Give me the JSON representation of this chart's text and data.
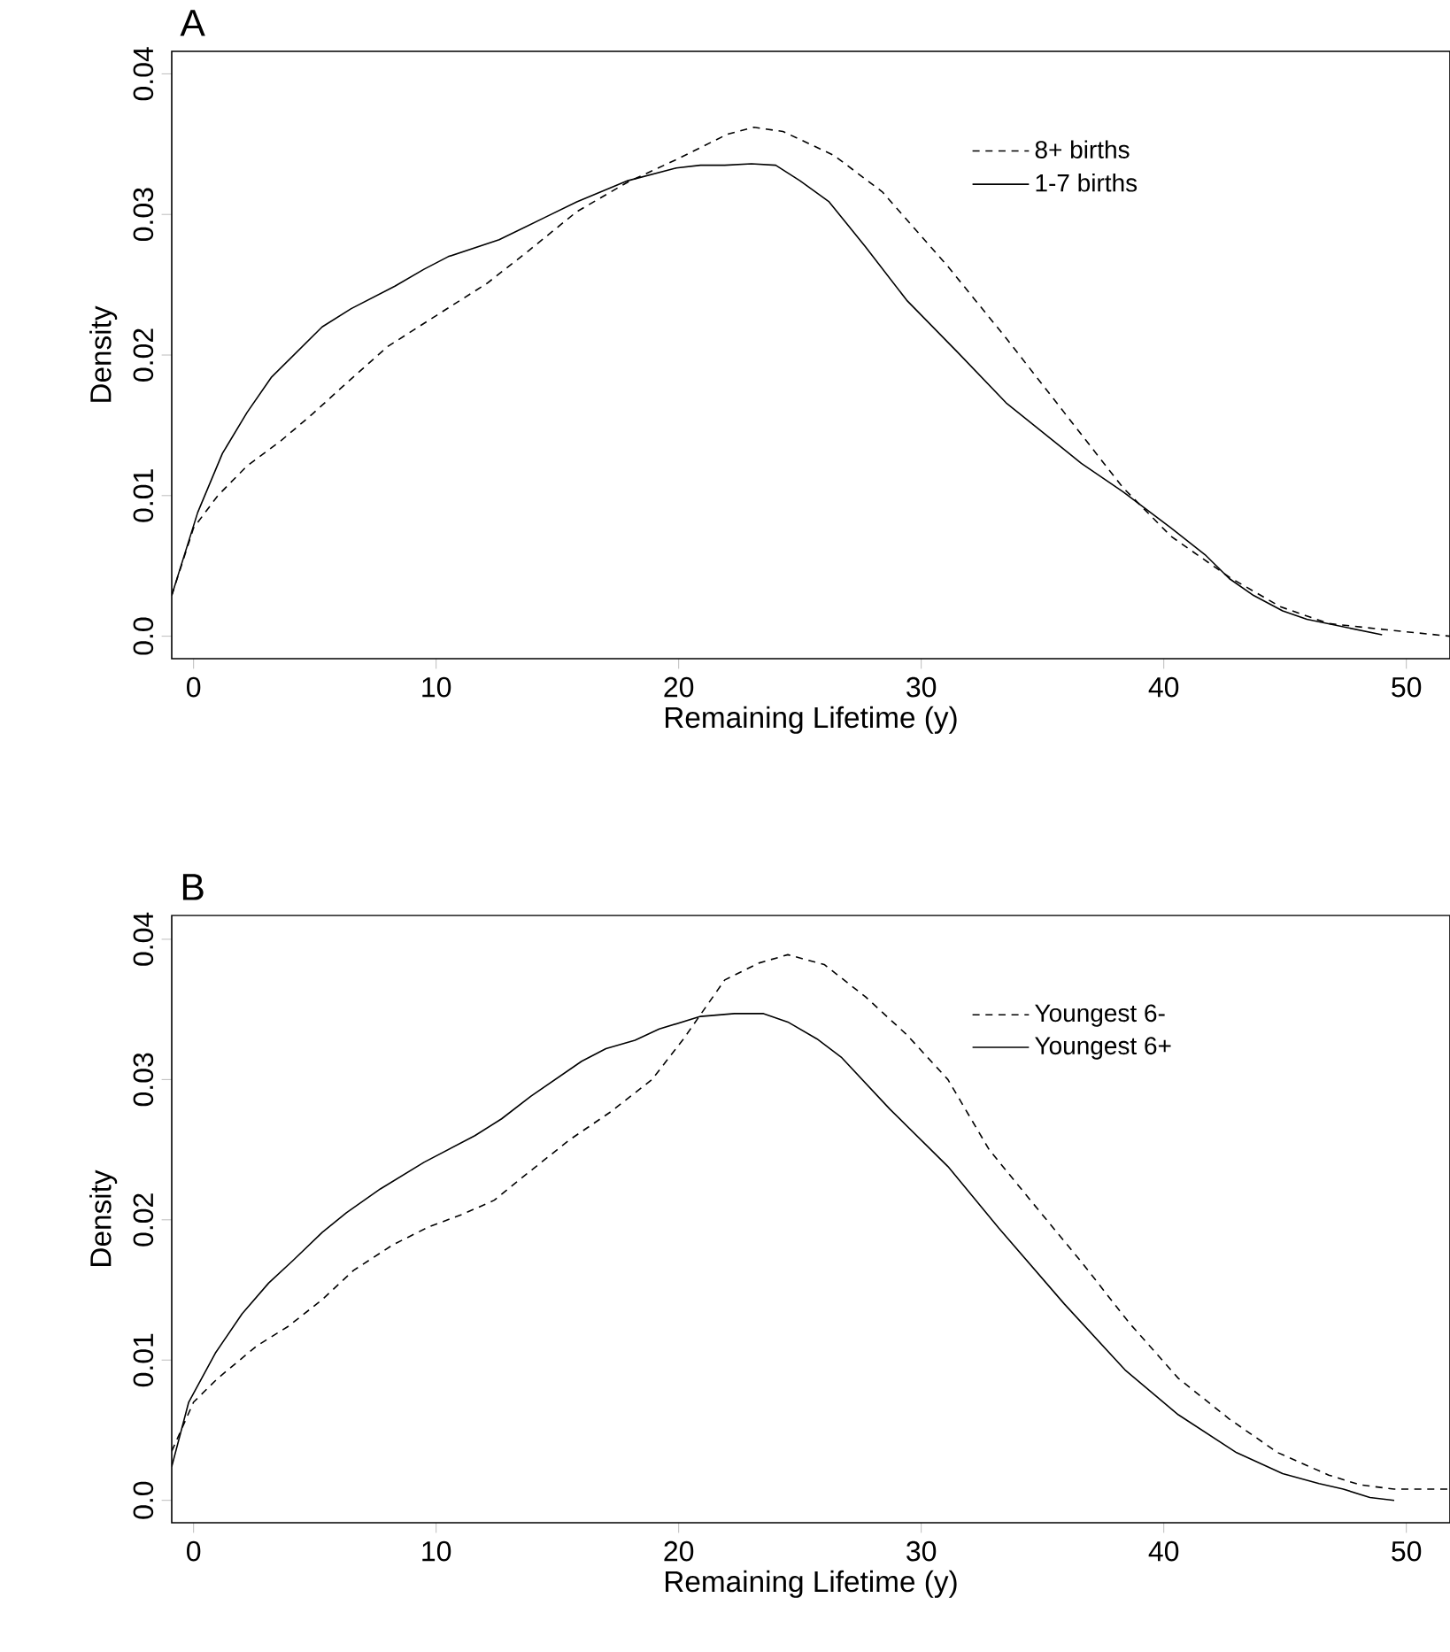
{
  "chart_data": [
    {
      "type": "line",
      "title": "A",
      "xlabel": "Remaining Lifetime (y)",
      "ylabel": "Density",
      "xlim": [
        -0.9,
        51.8
      ],
      "ylim": [
        -0.0016,
        0.0416
      ],
      "xticks": [
        0,
        10,
        20,
        30,
        40,
        50
      ],
      "yticks": [
        {
          "value": 0,
          "label": "0.0"
        },
        0.01,
        0.02,
        0.03,
        0.04
      ],
      "legend": "top right",
      "series": [
        {
          "name": "8+ births",
          "color": "#000000",
          "line_style": "dashed",
          "x": [
            -0.9,
            0.0,
            1.0,
            2.2,
            3.6,
            4.9,
            6.3,
            8.0,
            10.0,
            12.1,
            13.8,
            15.8,
            17.9,
            19.9,
            22.0,
            23.1,
            24.3,
            26.4,
            28.4,
            31.1,
            33.5,
            35.9,
            38.3,
            40.3,
            42.7,
            44.8,
            46.8,
            49.5,
            51.8
          ],
          "values": [
            0.0029,
            0.0077,
            0.01,
            0.0121,
            0.0139,
            0.0158,
            0.018,
            0.0206,
            0.0228,
            0.0251,
            0.0274,
            0.0302,
            0.0323,
            0.0339,
            0.0357,
            0.0362,
            0.0359,
            0.0342,
            0.0316,
            0.0263,
            0.0212,
            0.0159,
            0.0106,
            0.0071,
            0.0042,
            0.0021,
            0.0009,
            0.0004,
            0.0
          ]
        },
        {
          "name": "1-7 births",
          "color": "#000000",
          "line_style": "solid",
          "x": [
            -0.9,
            0.17,
            1.19,
            2.2,
            3.2,
            5.3,
            6.5,
            8.3,
            9.5,
            10.5,
            12.6,
            14.5,
            15.8,
            17.9,
            19.9,
            20.9,
            21.9,
            23.0,
            24.0,
            25.0,
            26.2,
            27.7,
            29.4,
            31.5,
            33.5,
            36.6,
            38.3,
            40.3,
            41.7,
            42.7,
            43.7,
            44.9,
            45.9,
            49.0
          ],
          "values": [
            0.0029,
            0.0088,
            0.013,
            0.0159,
            0.0184,
            0.022,
            0.0233,
            0.0249,
            0.0261,
            0.027,
            0.0282,
            0.0298,
            0.0309,
            0.0324,
            0.0333,
            0.0335,
            0.0335,
            0.0336,
            0.0335,
            0.0324,
            0.0309,
            0.0277,
            0.0239,
            0.0202,
            0.0166,
            0.0123,
            0.0103,
            0.0077,
            0.0058,
            0.0041,
            0.0029,
            0.0018,
            0.0012,
            0.0001
          ]
        }
      ]
    },
    {
      "type": "line",
      "title": "B",
      "xlabel": "Remaining Lifetime (y)",
      "ylabel": "Density",
      "xlim": [
        -0.9,
        51.8
      ],
      "ylim": [
        -0.0016,
        0.0417
      ],
      "xticks": [
        0,
        10,
        20,
        30,
        40,
        50
      ],
      "yticks": [
        {
          "value": 0,
          "label": "0.0"
        },
        0.01,
        0.02,
        0.03,
        0.04
      ],
      "legend": "top right",
      "series": [
        {
          "name": "Youngest 6-",
          "color": "#000000",
          "line_style": "dashed",
          "x": [
            -0.9,
            0.0,
            1.0,
            2.6,
            3.9,
            5.3,
            6.6,
            8.2,
            9.7,
            11.1,
            12.4,
            13.9,
            15.5,
            17.2,
            18.9,
            20.2,
            21.9,
            23.3,
            24.5,
            26.0,
            27.7,
            29.4,
            31.1,
            32.8,
            34.5,
            36.6,
            38.6,
            40.6,
            42.7,
            44.7,
            46.8,
            48.1,
            49.5,
            51.8
          ],
          "values": [
            0.0035,
            0.007,
            0.0087,
            0.011,
            0.0124,
            0.0143,
            0.0164,
            0.0182,
            0.0195,
            0.0204,
            0.0214,
            0.0235,
            0.0257,
            0.0277,
            0.03,
            0.0329,
            0.0371,
            0.0383,
            0.0389,
            0.0382,
            0.0359,
            0.0332,
            0.03,
            0.025,
            0.0214,
            0.017,
            0.0126,
            0.0087,
            0.0058,
            0.0034,
            0.0018,
            0.0011,
            0.0008,
            0.0008
          ]
        },
        {
          "name": "Youngest 6+",
          "color": "#000000",
          "line_style": "solid",
          "x": [
            -0.9,
            -0.2,
            0.9,
            2.0,
            3.1,
            4.1,
            5.3,
            6.3,
            7.7,
            9.5,
            11.6,
            12.7,
            13.9,
            16.0,
            17.0,
            18.2,
            19.2,
            20.9,
            22.3,
            23.5,
            24.5,
            25.7,
            26.7,
            28.7,
            31.1,
            33.2,
            35.9,
            38.4,
            40.6,
            43.0,
            44.9,
            46.4,
            47.4,
            48.5,
            49.5
          ],
          "values": [
            0.0024,
            0.007,
            0.0105,
            0.0133,
            0.0155,
            0.0171,
            0.0191,
            0.0205,
            0.0222,
            0.0241,
            0.026,
            0.0272,
            0.0288,
            0.0313,
            0.0322,
            0.0328,
            0.0336,
            0.0345,
            0.0347,
            0.0347,
            0.0341,
            0.0329,
            0.0316,
            0.0279,
            0.0238,
            0.0194,
            0.014,
            0.0093,
            0.0061,
            0.0034,
            0.0019,
            0.0012,
            0.0008,
            0.0002,
            0.0
          ]
        }
      ]
    }
  ]
}
